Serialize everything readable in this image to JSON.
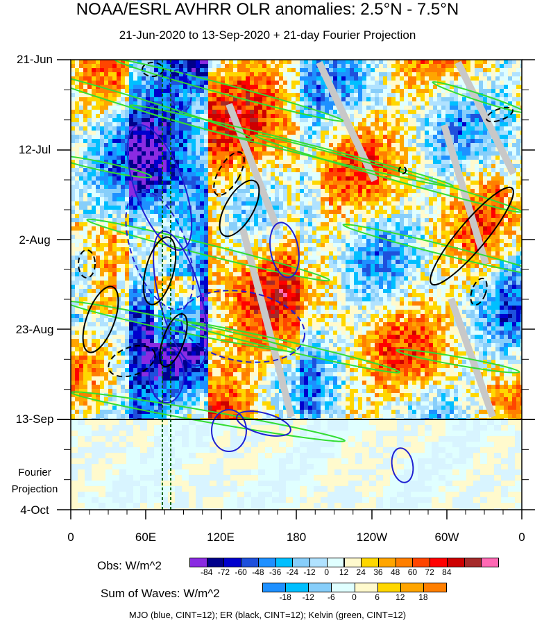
{
  "chart_data": {
    "type": "heatmap",
    "title": "NOAA/ESRL AVHRR OLR anomalies: 2.5°N - 7.5°N",
    "subtitle": "21-Jun-2020 to 13-Sep-2020 + 21-day Fourier Projection",
    "y_ticks": [
      "21-Jun",
      "12-Jul",
      "2-Aug",
      "23-Aug",
      "13-Sep",
      "4-Oct"
    ],
    "x_ticks": [
      "0",
      "60E",
      "120E",
      "180",
      "120W",
      "60W",
      "0"
    ],
    "projection_label_1": "Fourier",
    "projection_label_2": "Projection",
    "obs_colorbar": {
      "label": "Obs: W/m^2",
      "levels": [
        "-84",
        "-72",
        "-60",
        "-48",
        "-36",
        "-24",
        "-12",
        "0",
        "12",
        "24",
        "36",
        "48",
        "60",
        "72",
        "84"
      ],
      "colors": [
        "#8a2be2",
        "#00008b",
        "#0000cd",
        "#1e50dc",
        "#1e90ff",
        "#00bfff",
        "#87cefa",
        "#b0e2ff",
        "#e0ffff",
        "#fffacd",
        "#ffd700",
        "#ffa500",
        "#ff7f00",
        "#ff4500",
        "#ff0000",
        "#cd0000",
        "#a52a2a",
        "#ff69b4"
      ]
    },
    "waves_colorbar": {
      "label": "Sum of Waves: W/m^2",
      "levels": [
        "-18",
        "-12",
        "-6",
        "0",
        "6",
        "12",
        "18"
      ],
      "colors": [
        "#1e90ff",
        "#00bfff",
        "#87cefa",
        "#e0ffff",
        "#fffacd",
        "#ffd700",
        "#ffa500",
        "#ff7f00"
      ]
    },
    "caption": "MJO (blue, CINT=12); ER (black, CINT=12); Kelvin (green, CINT=12)",
    "series": [
      {
        "name": "MJO",
        "color": "#1f1fd1"
      },
      {
        "name": "ER",
        "color": "#000000"
      },
      {
        "name": "Kelvin",
        "color": "#33dd33"
      }
    ]
  }
}
